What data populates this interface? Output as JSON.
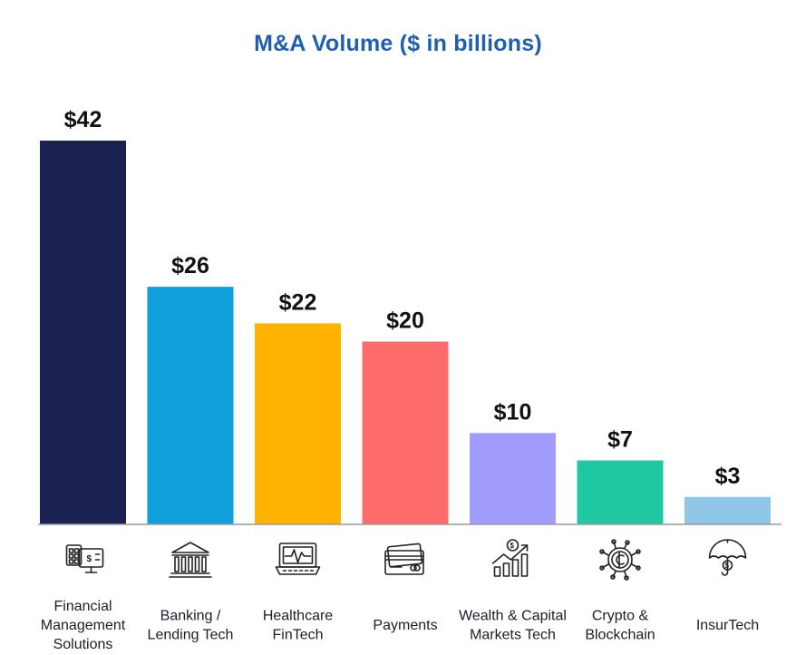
{
  "chart_data": {
    "type": "bar",
    "title": "M&A Volume ($ in billions)",
    "categories": [
      [
        "Financial",
        "Management",
        "Solutions"
      ],
      [
        "Banking /",
        "Lending Tech"
      ],
      [
        "Healthcare",
        "FinTech"
      ],
      [
        "Payments"
      ],
      [
        "Wealth & Capital",
        "Markets Tech"
      ],
      [
        "Crypto &",
        "Blockchain"
      ],
      [
        "InsurTech"
      ]
    ],
    "values": [
      42,
      26,
      22,
      20,
      10,
      7,
      3
    ],
    "value_labels": [
      "$42",
      "$26",
      "$22",
      "$20",
      "$10",
      "$7",
      "$3"
    ],
    "colors": [
      "#1b2150",
      "#0fa0dc",
      "#feb300",
      "#fd6b6b",
      "#a29cfd",
      "#20c7a3",
      "#8fc7e9"
    ],
    "icons": [
      "calculator-monitor-icon",
      "bank-building-icon",
      "heartbeat-laptop-icon",
      "credit-cards-icon",
      "growth-chart-icon",
      "crypto-coin-icon",
      "umbrella-icon"
    ],
    "xlabel": "",
    "ylabel": "",
    "ylim": [
      0,
      42
    ],
    "grid": false,
    "legend": "none"
  }
}
